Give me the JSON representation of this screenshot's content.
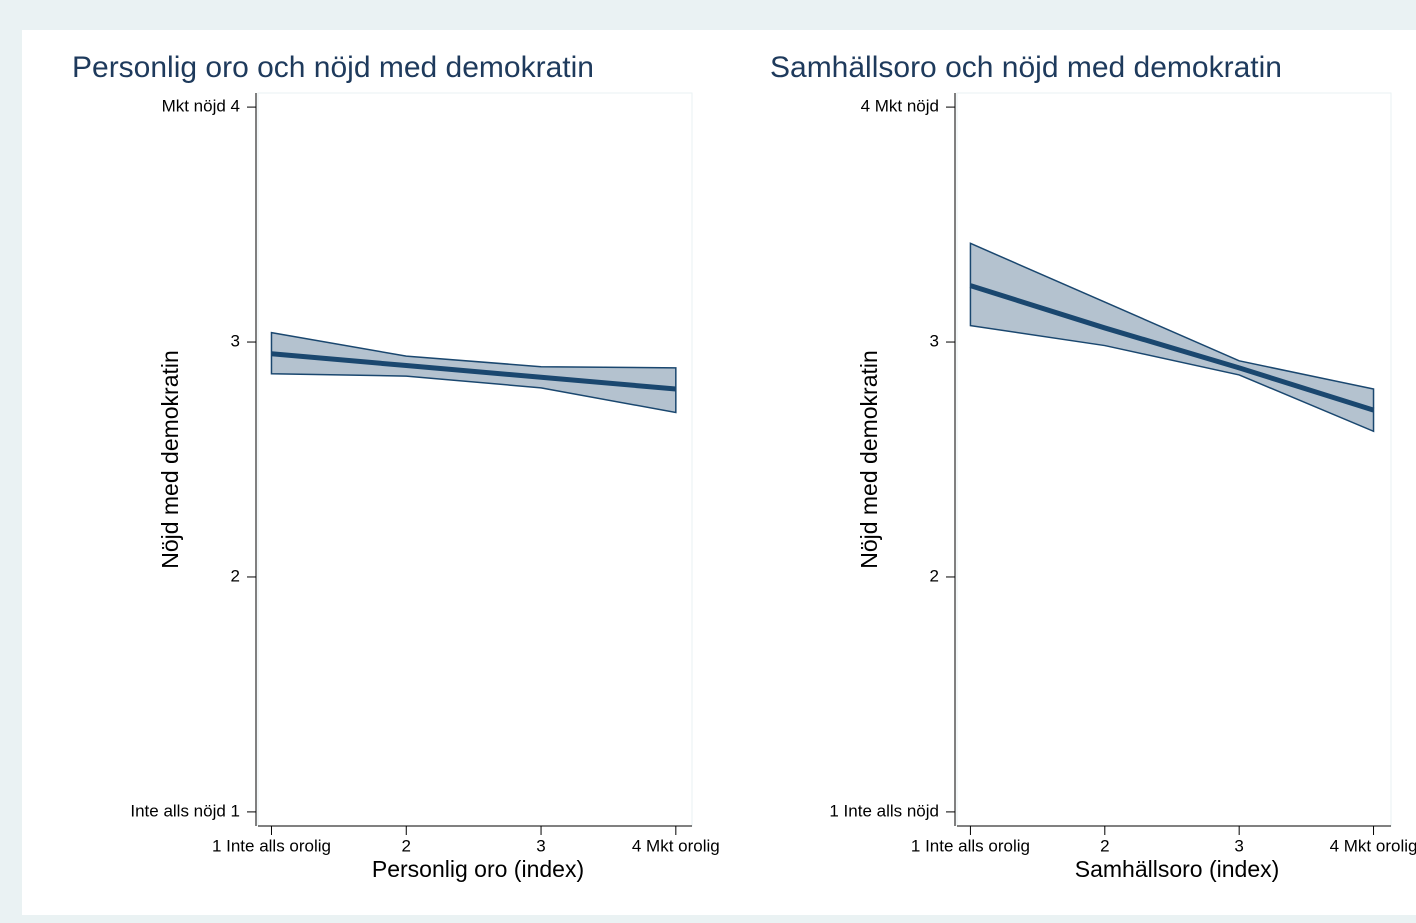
{
  "chart_data": [
    {
      "type": "line",
      "title": "Personlig oro och nöjd med demokratin",
      "x_label": "Personlig oro (index)",
      "y_label": "Nöjd med demokratin",
      "x": [
        1,
        2,
        3,
        4
      ],
      "values": [
        2.95,
        2.9,
        2.85,
        2.8
      ],
      "ci_lower": [
        2.865,
        2.855,
        2.805,
        2.7
      ],
      "ci_upper": [
        3.04,
        2.94,
        2.895,
        2.89
      ],
      "color": "#1a476f",
      "band_color": "#b4c2cf",
      "xlim": [
        0.9,
        4.12
      ],
      "ylim": [
        0.94,
        4.06
      ],
      "xticks": [
        {
          "value": 1,
          "label": "1 Inte alls orolig"
        },
        2,
        3,
        {
          "value": 4,
          "label": "4 Mkt orolig"
        }
      ],
      "yticks": [
        {
          "value": 1,
          "label": "Inte alls nöjd 1"
        },
        2,
        3,
        {
          "value": 4,
          "label": "Mkt nöjd 4"
        }
      ]
    },
    {
      "type": "line",
      "title": "Samhällsoro och nöjd med demokratin",
      "x_label": "Samhällsoro (index)",
      "y_label": "Nöjd med demokratin",
      "x": [
        1,
        2,
        3,
        4
      ],
      "values": [
        3.24,
        3.06,
        2.89,
        2.71
      ],
      "ci_lower": [
        3.07,
        2.985,
        2.86,
        2.62
      ],
      "ci_upper": [
        3.42,
        3.17,
        2.92,
        2.8
      ],
      "color": "#1a476f",
      "band_color": "#b4c2cf",
      "xlim": [
        0.9,
        4.13
      ],
      "ylim": [
        0.94,
        4.06
      ],
      "xticks": [
        {
          "value": 1,
          "label": "1 Inte alls orolig"
        },
        2,
        3,
        {
          "value": 4,
          "label": "4 Mkt orolig"
        }
      ],
      "yticks": [
        {
          "value": 1,
          "label": "1 Inte alls nöjd"
        },
        2,
        3,
        {
          "value": 4,
          "label": "4 Mkt nöjd"
        }
      ]
    }
  ]
}
